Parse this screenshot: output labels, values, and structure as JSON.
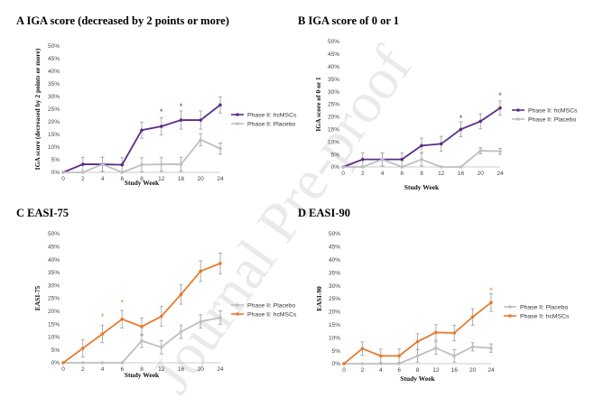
{
  "watermark": "Journal Pre-proof",
  "chart_data": [
    {
      "type": "line",
      "panel": "A",
      "title": "IGA score (decreased by 2 points or more)",
      "xlabel": "Study Week",
      "ylabel": "IGA score (decreased by 2 points or more)",
      "x": [
        0,
        2,
        4,
        6,
        8,
        12,
        16,
        20,
        24
      ],
      "ylim": [
        0,
        50
      ],
      "yticks": [
        0,
        5,
        10,
        15,
        20,
        25,
        30,
        35,
        40,
        45,
        50
      ],
      "tick_suffix": "%",
      "legend_position": "right",
      "series": [
        {
          "name": "Phase II: hcMSCs",
          "color": "#5b2d86",
          "values": [
            0,
            3.2,
            3.2,
            3.0,
            16.7,
            18.2,
            20.7,
            20.7,
            26.7
          ],
          "errors": [
            0,
            2.8,
            2.8,
            2.8,
            3.2,
            3.4,
            3.6,
            3.6,
            3.2
          ]
        },
        {
          "name": "Phase II: Placebo",
          "color": "#bfbfbf",
          "values": [
            0,
            0,
            3.2,
            0,
            3.0,
            3.2,
            3.2,
            12.9,
            9.4
          ],
          "errors": [
            0,
            0,
            2.8,
            0,
            2.8,
            2.8,
            2.8,
            2.4,
            2.2
          ]
        }
      ],
      "significance": [
        {
          "x": 12,
          "y": 24
        },
        {
          "x": 16,
          "y": 26
        }
      ]
    },
    {
      "type": "line",
      "panel": "B",
      "title": "IGA score of 0 or 1",
      "xlabel": "Study Week",
      "ylabel": "IGA score of 0 or 1",
      "x": [
        0,
        2,
        4,
        6,
        8,
        12,
        16,
        20,
        24
      ],
      "ylim": [
        0,
        50
      ],
      "yticks": [
        0,
        5,
        10,
        15,
        20,
        25,
        30,
        35,
        40,
        45,
        50
      ],
      "tick_suffix": "%",
      "legend_position": "right",
      "series": [
        {
          "name": "Phase II: hcMSCs",
          "color": "#5b2d86",
          "values": [
            0,
            3.0,
            3.0,
            3.0,
            8.5,
            9.2,
            15.0,
            18.2,
            23.5
          ],
          "errors": [
            0,
            2.6,
            2.6,
            2.6,
            3.0,
            3.0,
            3.0,
            3.0,
            2.8
          ]
        },
        {
          "name": "Phase II: Placebo",
          "color": "#bfbfbf",
          "values": [
            0,
            0,
            3.0,
            0,
            3.0,
            0,
            0,
            6.5,
            6.2
          ],
          "errors": [
            0,
            0,
            2.6,
            0,
            2.6,
            0,
            0,
            1.2,
            1.2
          ]
        }
      ],
      "significance": [
        {
          "x": 16,
          "y": 19.5
        },
        {
          "x": 24,
          "y": 28.5
        }
      ]
    },
    {
      "type": "line",
      "panel": "C",
      "title": "EASI-75",
      "xlabel": "Study Week",
      "ylabel": "EASI-75",
      "x": [
        0,
        2,
        4,
        6,
        8,
        12,
        16,
        20,
        24
      ],
      "ylim": [
        0,
        50
      ],
      "yticks": [
        0,
        5,
        10,
        15,
        20,
        25,
        30,
        35,
        40,
        45,
        50
      ],
      "tick_suffix": "%",
      "legend_position": "right",
      "series": [
        {
          "name": "Phase II: Placebo",
          "color": "#bfbfbf",
          "values": [
            0,
            0,
            0,
            0,
            8.5,
            6.0,
            12.0,
            16.0,
            17.5
          ],
          "errors": [
            0,
            0,
            0,
            0,
            2.6,
            2.6,
            2.6,
            2.6,
            2.6
          ]
        },
        {
          "name": "Phase II: hcMSCs",
          "color": "#e87b2c",
          "values": [
            0,
            5.6,
            11.2,
            16.9,
            14.0,
            18.0,
            26.5,
            35.5,
            38.5
          ],
          "errors": [
            0,
            3.4,
            3.4,
            3.4,
            3.4,
            3.8,
            3.8,
            4.0,
            4.0
          ]
        }
      ],
      "significance": [
        {
          "x": 4,
          "y": 17.8
        },
        {
          "x": 6,
          "y": 23.2
        }
      ]
    },
    {
      "type": "line",
      "panel": "D",
      "title": "EASI-90",
      "xlabel": "Study Week",
      "ylabel": "EASI-90",
      "x": [
        0,
        2,
        4,
        6,
        8,
        12,
        16,
        20,
        24
      ],
      "ylim": [
        0,
        50
      ],
      "yticks": [
        0,
        5,
        10,
        15,
        20,
        25,
        30,
        35,
        40,
        45,
        50
      ],
      "tick_suffix": "%",
      "legend_position": "right",
      "series": [
        {
          "name": "Phase II: Placebo",
          "color": "#bfbfbf",
          "values": [
            0,
            0,
            0,
            0,
            3.0,
            6.0,
            3.0,
            6.5,
            6.0
          ],
          "errors": [
            0,
            0,
            0,
            0,
            2.4,
            2.4,
            2.4,
            1.6,
            1.6
          ]
        },
        {
          "name": "Phase II: hcMSCs",
          "color": "#e87b2c",
          "values": [
            0,
            5.8,
            3.0,
            3.0,
            8.5,
            12.0,
            11.8,
            18.0,
            23.5
          ],
          "errors": [
            0,
            2.6,
            2.6,
            2.6,
            3.0,
            3.0,
            3.0,
            3.2,
            3.4
          ]
        }
      ],
      "significance": [
        {
          "x": 24,
          "y": 28.2
        }
      ]
    }
  ]
}
